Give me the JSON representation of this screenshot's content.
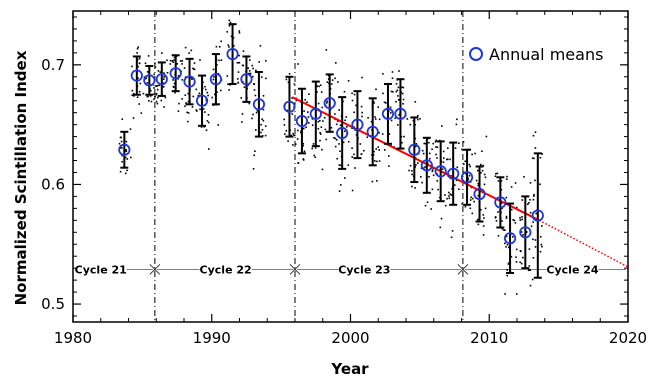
{
  "chart_data": {
    "type": "scatter",
    "xlabel": "Year",
    "ylabel": "Normalized Scintillation Index",
    "xlim": [
      1980,
      2020
    ],
    "ylim": [
      0.485,
      0.745
    ],
    "x_ticks": [
      1980,
      1990,
      2000,
      2010,
      2020
    ],
    "y_ticks": [
      0.5,
      0.6,
      0.7
    ],
    "x_tick_labels": [
      "1980",
      "1990",
      "2000",
      "2010",
      "2020"
    ],
    "y_tick_labels": [
      "0.5",
      "0.6",
      "0.7"
    ],
    "legend": {
      "label": "Annual means",
      "placement": "top-right",
      "marker": "open-circle"
    },
    "series": [
      {
        "name": "Annual means",
        "points": [
          {
            "x": 1983.7,
            "y": 0.629,
            "err": 0.015
          },
          {
            "x": 1984.6,
            "y": 0.691,
            "err": 0.016
          },
          {
            "x": 1985.5,
            "y": 0.687,
            "err": 0.012
          },
          {
            "x": 1986.4,
            "y": 0.688,
            "err": 0.014
          },
          {
            "x": 1987.4,
            "y": 0.693,
            "err": 0.015
          },
          {
            "x": 1988.4,
            "y": 0.686,
            "err": 0.019
          },
          {
            "x": 1989.3,
            "y": 0.67,
            "err": 0.021
          },
          {
            "x": 1990.3,
            "y": 0.688,
            "err": 0.021
          },
          {
            "x": 1991.5,
            "y": 0.709,
            "err": 0.025
          },
          {
            "x": 1992.5,
            "y": 0.688,
            "err": 0.019
          },
          {
            "x": 1993.4,
            "y": 0.667,
            "err": 0.027
          },
          {
            "x": 1995.6,
            "y": 0.665,
            "err": 0.025
          },
          {
            "x": 1996.5,
            "y": 0.653,
            "err": 0.027
          },
          {
            "x": 1997.5,
            "y": 0.659,
            "err": 0.027
          },
          {
            "x": 1998.5,
            "y": 0.668,
            "err": 0.024
          },
          {
            "x": 1999.4,
            "y": 0.643,
            "err": 0.03
          },
          {
            "x": 2000.5,
            "y": 0.65,
            "err": 0.028
          },
          {
            "x": 2001.6,
            "y": 0.644,
            "err": 0.028
          },
          {
            "x": 2002.7,
            "y": 0.659,
            "err": 0.025
          },
          {
            "x": 2003.6,
            "y": 0.659,
            "err": 0.029
          },
          {
            "x": 2004.6,
            "y": 0.629,
            "err": 0.027
          },
          {
            "x": 2005.5,
            "y": 0.616,
            "err": 0.023
          },
          {
            "x": 2006.5,
            "y": 0.611,
            "err": 0.025
          },
          {
            "x": 2007.4,
            "y": 0.609,
            "err": 0.026
          },
          {
            "x": 2008.4,
            "y": 0.606,
            "err": 0.023
          },
          {
            "x": 2009.3,
            "y": 0.592,
            "err": 0.023
          },
          {
            "x": 2010.8,
            "y": 0.585,
            "err": 0.021
          },
          {
            "x": 2011.5,
            "y": 0.555,
            "err": 0.029
          },
          {
            "x": 2012.6,
            "y": 0.56,
            "err": 0.03
          },
          {
            "x": 2013.5,
            "y": 0.574,
            "err": 0.052
          }
        ]
      }
    ],
    "trend_line": {
      "color": "#ff0000",
      "solid": {
        "x": [
          1995.8,
          2013.6
        ],
        "y": [
          0.673,
          0.57
        ]
      },
      "dotted": {
        "x": [
          2013.6,
          2020.0
        ],
        "y": [
          0.57,
          0.531
        ]
      }
    },
    "cycle_boundaries": [
      1985.9,
      1996.0,
      2008.1
    ],
    "cycle_labels": [
      {
        "text": "Cycle 21",
        "x": 1982.0
      },
      {
        "text": "Cycle 22",
        "x": 1991.0
      },
      {
        "text": "Cycle 23",
        "x": 2001.0
      },
      {
        "text": "Cycle 24",
        "x": 2016.0
      }
    ],
    "cycle_label_y": 0.529,
    "colors": {
      "means": "#1f37d8",
      "trend": "#ff0000",
      "errorbars": "#000000",
      "scatter": "#000000"
    }
  }
}
